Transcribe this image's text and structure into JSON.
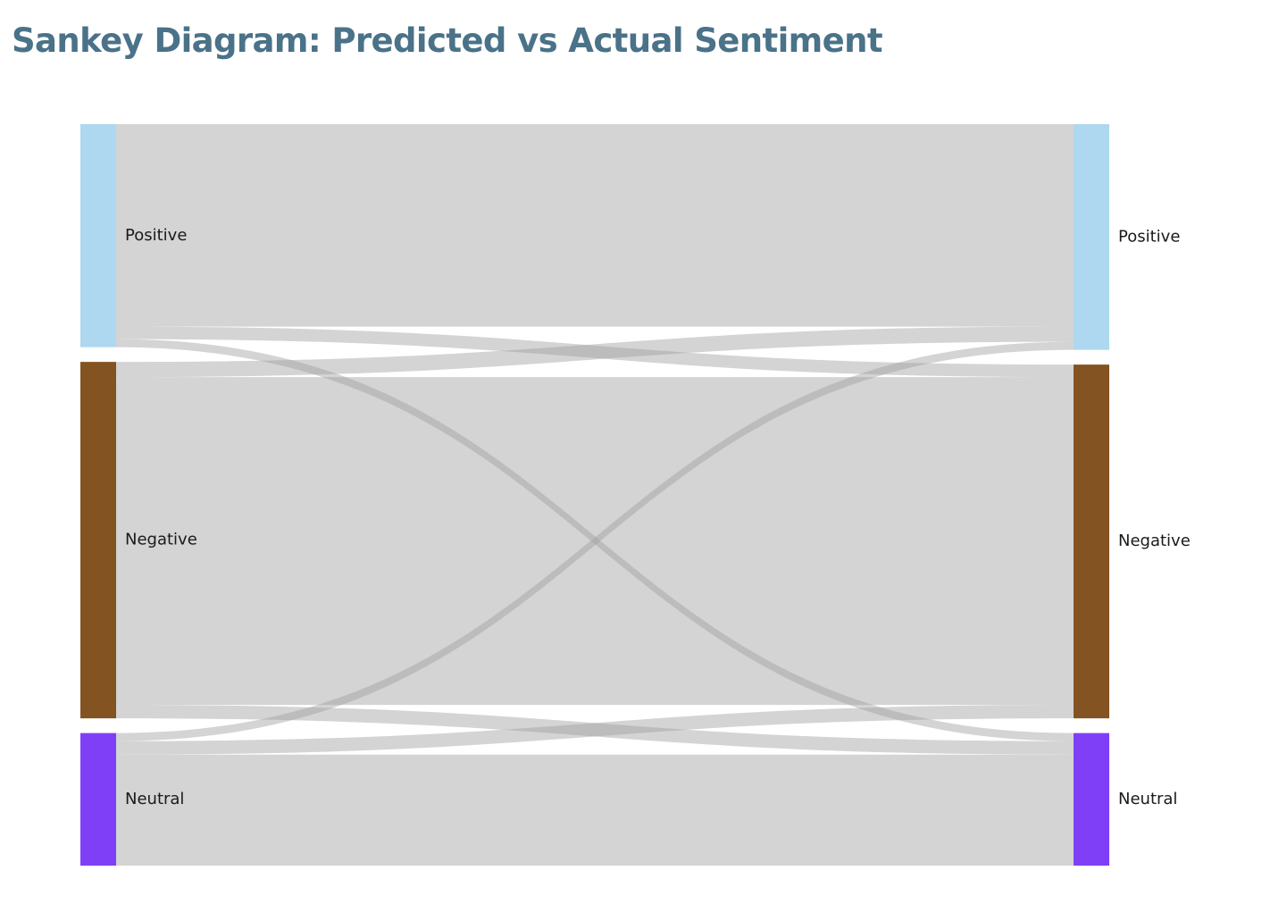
{
  "title": "Sankey Diagram: Predicted vs Actual Sentiment",
  "chart_data": {
    "type": "sankey",
    "title": "Sankey Diagram: Predicted vs Actual Sentiment",
    "link_color": "#a0a0a0",
    "left_nodes": [
      {
        "id": "pred-positive",
        "label": "Positive",
        "color": "#add8ef"
      },
      {
        "id": "pred-negative",
        "label": "Negative",
        "color": "#835322"
      },
      {
        "id": "pred-neutral",
        "label": "Neutral",
        "color": "#7f3ff7"
      }
    ],
    "right_nodes": [
      {
        "id": "act-positive",
        "label": "Positive",
        "color": "#add8ef"
      },
      {
        "id": "act-negative",
        "label": "Negative",
        "color": "#835322"
      },
      {
        "id": "act-neutral",
        "label": "Neutral",
        "color": "#7f3ff7"
      }
    ],
    "links": [
      {
        "source": "pred-positive",
        "target": "act-positive",
        "value": 226
      },
      {
        "source": "pred-positive",
        "target": "act-negative",
        "value": 14
      },
      {
        "source": "pred-positive",
        "target": "act-neutral",
        "value": 9
      },
      {
        "source": "pred-negative",
        "target": "act-positive",
        "value": 17
      },
      {
        "source": "pred-negative",
        "target": "act-negative",
        "value": 366
      },
      {
        "source": "pred-negative",
        "target": "act-neutral",
        "value": 15
      },
      {
        "source": "pred-neutral",
        "target": "act-positive",
        "value": 9
      },
      {
        "source": "pred-neutral",
        "target": "act-negative",
        "value": 15
      },
      {
        "source": "pred-neutral",
        "target": "act-neutral",
        "value": 124
      }
    ]
  }
}
